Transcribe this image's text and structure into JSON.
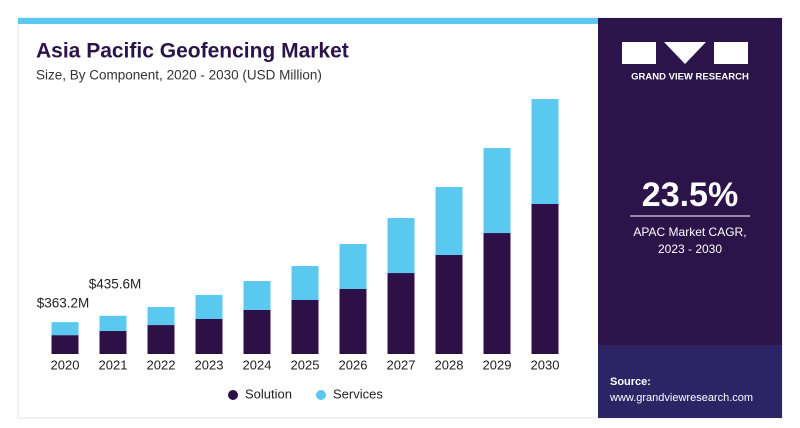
{
  "chart_data": {
    "type": "stacked_bar",
    "title": "Asia Pacific Geofencing Market",
    "subtitle": "Size, By Component, 2020 - 2030 (USD Million)",
    "categories": [
      "2020",
      "2021",
      "2022",
      "2023",
      "2024",
      "2025",
      "2026",
      "2027",
      "2028",
      "2029",
      "2030"
    ],
    "series": [
      {
        "name": "Solution",
        "color": "#2d1048",
        "values": [
          215.0,
          262.0,
          330,
          399,
          502,
          616,
          741,
          923,
          1129,
          1379,
          1710
        ]
      },
      {
        "name": "Services",
        "color": "#5bc8f0",
        "values": [
          148.2,
          173.6,
          206,
          274,
          330,
          387,
          513,
          627,
          775,
          969,
          1197
        ]
      }
    ],
    "annotations": [
      {
        "category": "2020",
        "value": 363.2,
        "label": "$363.2M"
      },
      {
        "category": "2021",
        "value": 435.6,
        "label": "$435.6M"
      }
    ],
    "legend": "bottom"
  },
  "brand": "GRAND VIEW RESEARCH",
  "cagr": {
    "value": "23.5%",
    "label": "APAC Market CAGR,",
    "period": "2023 - 2030"
  },
  "source": {
    "label": "Source:",
    "url": "www.grandviewresearch.com"
  }
}
